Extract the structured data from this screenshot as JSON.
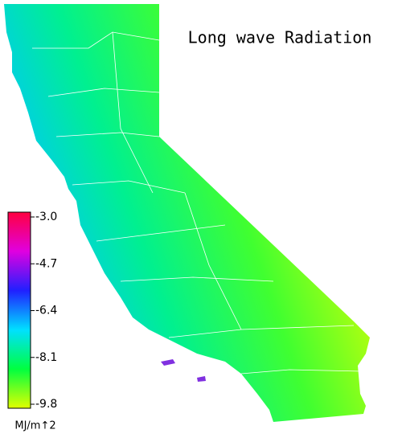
{
  "title": "Long wave Radiation",
  "colorbar": {
    "range": [
      -3.0,
      -9.8
    ],
    "colors": [
      "#ff0040",
      "#e000e0",
      "#2020ff",
      "#00e0ff",
      "#00ff40",
      "#e0ff00"
    ],
    "ticks": [
      {
        "value": -3.0,
        "label": "-3.0"
      },
      {
        "value": -4.7,
        "label": "-4.7"
      },
      {
        "value": -6.4,
        "label": "-6.4"
      },
      {
        "value": -8.1,
        "label": "-8.1"
      },
      {
        "value": -9.8,
        "label": "-9.8"
      }
    ],
    "unit": "MJ/m↑2"
  }
}
